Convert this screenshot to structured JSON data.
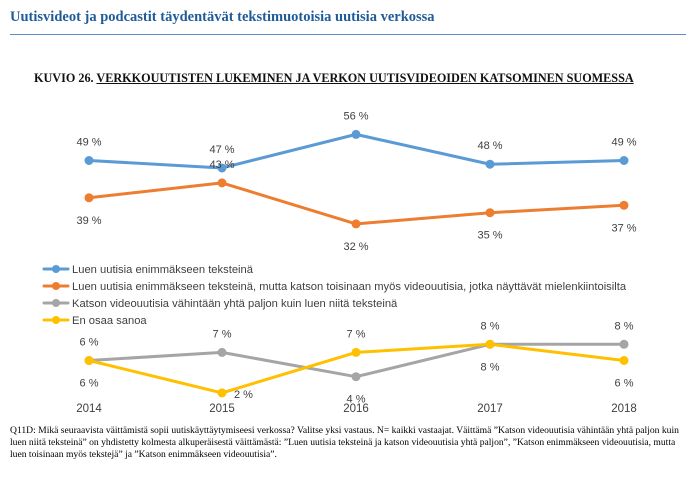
{
  "header": {
    "title": "Uutisvideot ja podcastit täydentävät tekstimuotoisia uutisia verkossa"
  },
  "figure": {
    "label": "KUVIO 26.",
    "title": "VERKKOUUTISTEN LUKEMINEN JA VERKON UUTISVIDEOIDEN KATSOMINEN SUOMESSA"
  },
  "chart_data": {
    "type": "line",
    "categories": [
      "2014",
      "2015",
      "2016",
      "2017",
      "2018"
    ],
    "series": [
      {
        "name": "Luen uutisia enimmäkseen teksteinä",
        "color": "#5b9bd5",
        "values": [
          49,
          47,
          56,
          48,
          49
        ],
        "labels": [
          "49 %",
          "47 %",
          "56 %",
          "48 %",
          "49 %"
        ]
      },
      {
        "name": "Luen uutisia enimmäkseen teksteinä, mutta katson toisinaan myös videouutisia, jotka näyttävät mielenkiintoisilta",
        "color": "#ed7d31",
        "values": [
          39,
          43,
          32,
          35,
          37
        ],
        "labels": [
          "39 %",
          "43 %",
          "32 %",
          "35 %",
          "37 %"
        ]
      },
      {
        "name": "Katson videouutisia vähintään yhtä paljon kuin luen niitä teksteinä",
        "color": "#a5a5a5",
        "values": [
          6,
          7,
          4,
          8,
          8
        ],
        "labels": [
          "6 %",
          "7 %",
          "4 %",
          "8 %",
          "8 %"
        ]
      },
      {
        "name": "En osaa sanoa",
        "color": "#ffc000",
        "values": [
          6,
          2,
          7,
          8,
          6
        ],
        "labels": [
          "6 %",
          "2 %",
          "7 %",
          "8 %",
          "6 %"
        ]
      }
    ]
  },
  "footnote": "Q11D: Mikä seuraavista väittämistä sopii uutiskäyttäytymiseesi verkossa? Valitse yksi vastaus. N= kaikki vastaajat. Väittämä ”Katson videouutisia vähintään yhtä paljon kuin luen niitä teksteinä” on yhdistetty kolmesta alkuperäisestä väittämästä: ”Luen uutisia teksteinä ja katson videouutisia yhtä paljon”, ”Katson enimmäkseen videouutisia, mutta luen toisinaan myös tekstejä” ja ”Katson enimmäkseen videouutisia”."
}
